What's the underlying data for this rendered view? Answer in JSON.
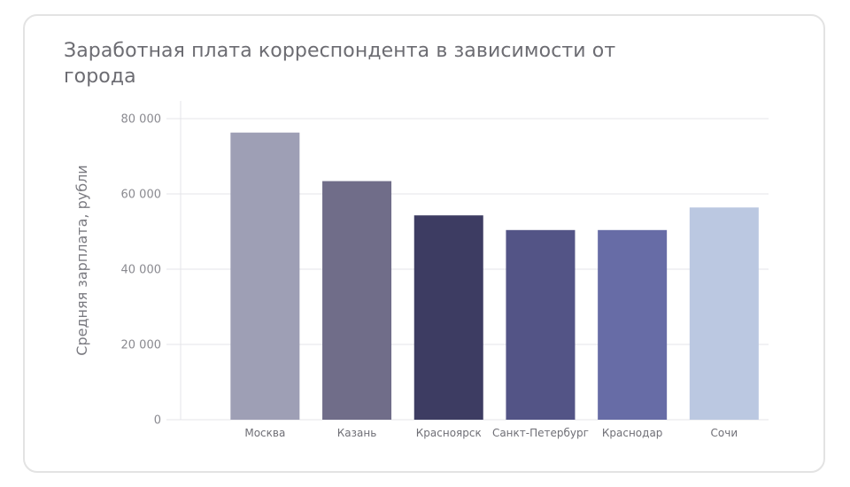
{
  "chart_data": {
    "type": "bar",
    "title": "Заработная плата корреспондента в зависимости от города",
    "xlabel": "",
    "ylabel": "Средняя зарплата, рубли",
    "categories": [
      "Москва",
      "Казань",
      "Красноярск",
      "Санкт-Петербург",
      "Краснодар",
      "Сочи"
    ],
    "values": [
      76300,
      63400,
      54300,
      50400,
      50400,
      56400
    ],
    "colors": [
      "#9e9fb5",
      "#706d89",
      "#3d3c62",
      "#535486",
      "#676ca6",
      "#bbc8e1"
    ],
    "ylim": [
      0,
      80000
    ],
    "yticks": [
      0,
      20000,
      40000,
      60000,
      80000
    ],
    "ytick_labels": [
      "0",
      "20 000",
      "40 000",
      "60 000",
      "80 000"
    ],
    "grid": true,
    "legend": "none"
  }
}
